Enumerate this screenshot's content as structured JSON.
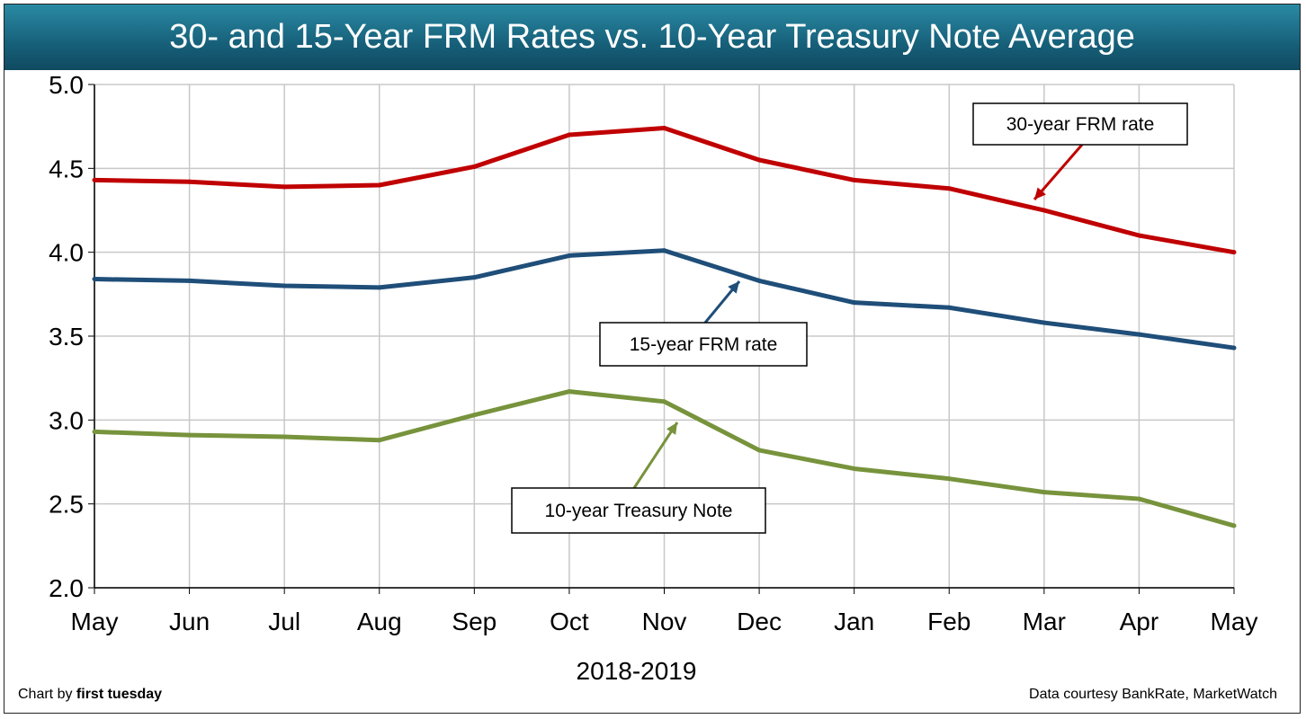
{
  "chart_data": {
    "type": "line",
    "title": "30- and 15-Year FRM Rates vs. 10-Year Treasury Note Average",
    "xlabel": "2018-2019",
    "ylabel": "",
    "categories": [
      "May",
      "Jun",
      "Jul",
      "Aug",
      "Sep",
      "Oct",
      "Nov",
      "Dec",
      "Jan",
      "Feb",
      "Mar",
      "Apr",
      "May"
    ],
    "ylim": [
      2.0,
      5.0
    ],
    "yticks": [
      "2.0",
      "2.5",
      "3.0",
      "3.5",
      "4.0",
      "4.5",
      "5.0"
    ],
    "grid": true,
    "series": [
      {
        "name": "30-year FRM rate",
        "color": "#c00000",
        "values": [
          4.43,
          4.42,
          4.39,
          4.4,
          4.51,
          4.7,
          4.74,
          4.55,
          4.43,
          4.38,
          4.25,
          4.1,
          4.0
        ]
      },
      {
        "name": "15-year FRM rate",
        "color": "#1f4e79",
        "values": [
          3.84,
          3.83,
          3.8,
          3.79,
          3.85,
          3.98,
          4.01,
          3.83,
          3.7,
          3.67,
          3.58,
          3.51,
          3.43
        ]
      },
      {
        "name": "10-year Treasury Note",
        "color": "#77933c",
        "values": [
          2.93,
          2.91,
          2.9,
          2.88,
          3.03,
          3.17,
          3.11,
          2.82,
          2.71,
          2.65,
          2.57,
          2.53,
          2.37
        ]
      }
    ]
  },
  "footer": {
    "credit_prefix": "Chart by ",
    "credit_brand": "first tuesday",
    "source": "Data courtesy BankRate, MarketWatch"
  }
}
